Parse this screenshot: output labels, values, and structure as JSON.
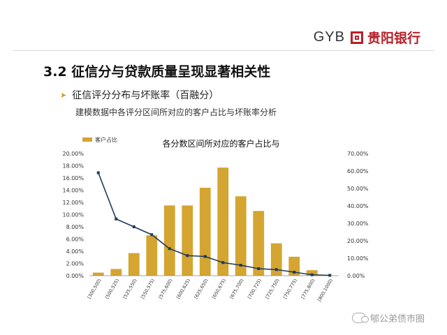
{
  "header": {
    "logo_text": "GYB",
    "logo_cn": "贵阳银行",
    "brand_color": "#b8202a"
  },
  "section_title": "3.2 征信分与贷款质量呈现显著相关性",
  "bullet": {
    "icon": "triangle-right-icon",
    "text": "征信评分分布与坏账率（百融分）"
  },
  "description": "建模数据中各评分区间所对应的客户占比与坏账率分析",
  "watermark": "郇公弟债市圈",
  "chart_data": {
    "type": "bar",
    "title": "各分数区间所对应的客户占比与",
    "legend": [
      "客户占比"
    ],
    "categories": [
      "[300,500)",
      "[500,525)",
      "[525,550)",
      "[550,575)",
      "[575,600)",
      "[600,625)",
      "[625,650)",
      "[650,675)",
      "[675,700)",
      "[700,725)",
      "[725,750)",
      "[750,775)",
      "[775,800)",
      "[800,1000)"
    ],
    "series": [
      {
        "name": "客户占比",
        "type": "bar",
        "axis": "left",
        "color": "#d4a531",
        "values": [
          0.5,
          1.1,
          3.7,
          6.6,
          11.5,
          11.5,
          14.4,
          17.7,
          13.0,
          10.6,
          5.3,
          3.1,
          0.9,
          0.05
        ]
      },
      {
        "type": "line",
        "axis": "right",
        "color": "#1f3b5a",
        "values": [
          59.0,
          32.5,
          28.0,
          23.5,
          15.5,
          11.5,
          11.0,
          7.5,
          6.0,
          4.0,
          3.5,
          2.0,
          0.5,
          0.2
        ]
      }
    ],
    "y_left": {
      "min": 0,
      "max": 20,
      "step": 2,
      "unit": "%",
      "decimals": 2
    },
    "y_right": {
      "min": 0,
      "max": 70,
      "step": 10,
      "unit": "%",
      "decimals": 2
    },
    "legend_position": "top-left",
    "grid": false
  }
}
